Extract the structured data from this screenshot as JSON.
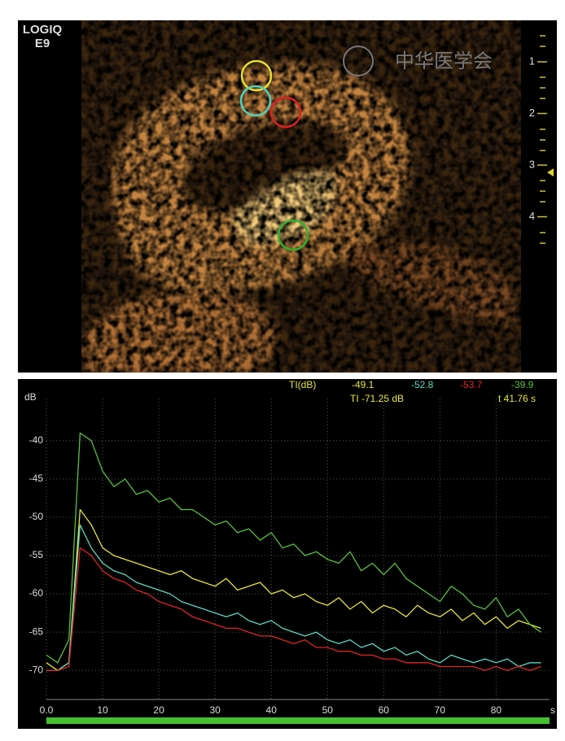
{
  "scan": {
    "logo_line1": "LOGIQ",
    "logo_line2": "E9",
    "watermark": "中华医学会",
    "depth_ticks": [
      1,
      2,
      3,
      4
    ]
  },
  "chart_data": {
    "type": "line",
    "ti_label": "TI(dB)",
    "ti_values": [
      -49.1,
      -52.8,
      -53.7,
      -39.9
    ],
    "ti_readout": "TI -71.25 dB",
    "t_readout": "t 41.76 s",
    "y_label": "dB",
    "x_unit": "s",
    "x": [
      0,
      2,
      4,
      6,
      8,
      10,
      12,
      14,
      16,
      18,
      20,
      22,
      24,
      26,
      28,
      30,
      32,
      34,
      36,
      38,
      40,
      42,
      44,
      46,
      48,
      50,
      52,
      54,
      56,
      58,
      60,
      62,
      64,
      66,
      68,
      70,
      72,
      74,
      76,
      78,
      80,
      82,
      84,
      86,
      88
    ],
    "series": [
      {
        "color": "#e6e63c",
        "values": [
          -69,
          -70,
          -69,
          -49,
          -51,
          -54,
          -55,
          -55.5,
          -56,
          -56.5,
          -57,
          -57.5,
          -57,
          -58,
          -58.5,
          -59,
          -58,
          -59.5,
          -59,
          -58.5,
          -60,
          -59.5,
          -60.5,
          -60,
          -61,
          -61.5,
          -60.5,
          -62,
          -61,
          -62.5,
          -61.5,
          -62,
          -63,
          -61.5,
          -62.5,
          -63,
          -62,
          -63.5,
          -62.5,
          -64,
          -63,
          -64.5,
          -63.5,
          -64,
          -64.5
        ]
      },
      {
        "color": "#5cd6c0",
        "values": [
          -70,
          -70,
          -69,
          -51,
          -54,
          -56,
          -57,
          -57.5,
          -58.5,
          -59,
          -59.5,
          -60,
          -61,
          -61.5,
          -62,
          -62.5,
          -63,
          -62.5,
          -63.5,
          -64,
          -63.5,
          -64.5,
          -65,
          -65.5,
          -65,
          -66,
          -66.5,
          -66,
          -67,
          -66.5,
          -67.5,
          -67,
          -68,
          -67.5,
          -68.5,
          -69,
          -68,
          -68.5,
          -69,
          -68.5,
          -69,
          -68.5,
          -69.5,
          -69,
          -69
        ]
      },
      {
        "color": "#e02424",
        "values": [
          -70,
          -70,
          -69.5,
          -54,
          -55,
          -57,
          -58,
          -58.5,
          -59.5,
          -60,
          -61,
          -61.5,
          -62,
          -63,
          -63.5,
          -64,
          -64.5,
          -64.5,
          -65,
          -65.5,
          -65.5,
          -66,
          -66.5,
          -66,
          -67,
          -67,
          -67.5,
          -67.5,
          -68,
          -68,
          -68.5,
          -68.5,
          -69,
          -69,
          -69,
          -69.5,
          -69.5,
          -69.5,
          -69.5,
          -70,
          -69.5,
          -70,
          -69.5,
          -70,
          -69.5
        ]
      },
      {
        "color": "#58c23a",
        "values": [
          -68,
          -69,
          -66,
          -39,
          -40,
          -44,
          -46,
          -45,
          -47,
          -46.5,
          -48,
          -47.5,
          -49,
          -49,
          -50,
          -51,
          -50.5,
          -52,
          -51.5,
          -53,
          -52,
          -54,
          -53.5,
          -55,
          -54.5,
          -55.5,
          -56,
          -54.5,
          -57,
          -56,
          -57.5,
          -56,
          -58,
          -59,
          -60,
          -61,
          -59,
          -60,
          -61.5,
          -62,
          -60.5,
          -63,
          -62,
          -64,
          -65
        ]
      }
    ],
    "xlim": [
      0,
      89.5
    ],
    "ylim": [
      -73.8,
      -34.5
    ],
    "xticks": [
      {
        "value": 0,
        "label": "0.0"
      },
      10,
      20,
      30,
      40,
      50,
      60,
      70,
      80
    ],
    "yticks": [
      -40,
      -45,
      -50,
      -55,
      -60,
      -65,
      -70
    ],
    "grid": true
  }
}
